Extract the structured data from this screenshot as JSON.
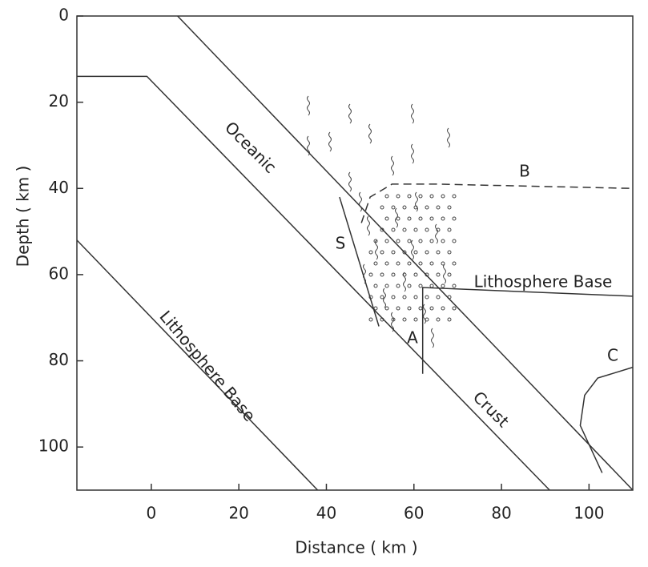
{
  "chart_data": {
    "type": "line",
    "xlabel": "Distance ( km )",
    "ylabel": "Depth ( km )",
    "xlim": [
      -17,
      110
    ],
    "ylim": [
      0,
      110
    ],
    "y_inverted": true,
    "xticks": [
      0,
      20,
      40,
      60,
      80,
      100
    ],
    "yticks": [
      0,
      20,
      40,
      60,
      80,
      100
    ],
    "color": "#333333",
    "series": [
      {
        "x": [
          6,
          110
        ],
        "values": [
          0,
          110
        ]
      },
      {
        "x": [
          -17,
          -1,
          91
        ],
        "values": [
          14,
          14,
          110
        ]
      },
      {
        "x": [
          -17,
          38
        ],
        "values": [
          52,
          110
        ]
      },
      {
        "x": [
          62,
          62,
          110
        ],
        "values": [
          83,
          63,
          65
        ]
      },
      {
        "x": [
          43,
          52
        ],
        "values": [
          42,
          72
        ]
      },
      {
        "x": [
          48,
          50,
          55,
          65,
          110
        ],
        "values": [
          48,
          42,
          39,
          39,
          40
        ],
        "style": "dashed"
      },
      {
        "x": [
          110,
          102,
          99,
          98,
          103
        ],
        "values": [
          81.5,
          84,
          88,
          95,
          106
        ]
      }
    ],
    "annotations": [
      "Oceanic",
      "Crust",
      "Lithosphere Base",
      "Lithosphere Base",
      "S",
      "A",
      "B",
      "C"
    ]
  }
}
